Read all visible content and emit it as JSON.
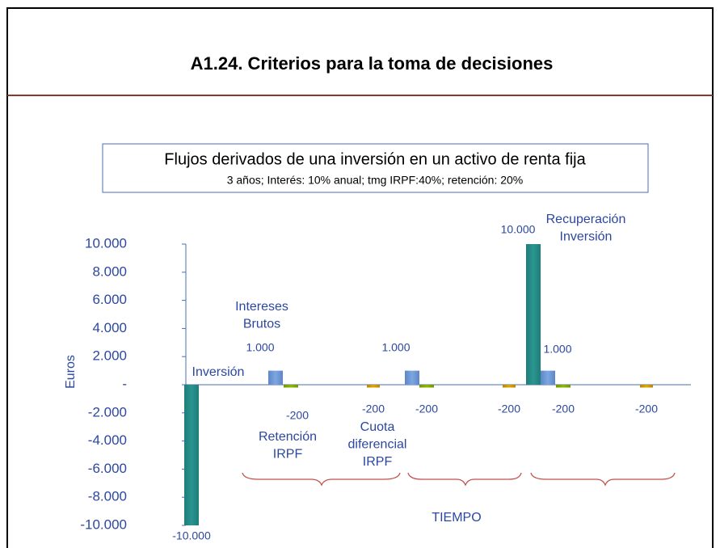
{
  "title": "A1.24. Criterios para la toma de decisiones",
  "chart_data": {
    "type": "bar",
    "title": "Flujos derivados de una inversión en un activo de renta fija",
    "subtitle": "3 años; Interés: 10% anual; tmg IRPF:40%; retención: 20%",
    "y_label": "Euros",
    "x_label": "TIEMPO",
    "categories": [
      null,
      null,
      null,
      null,
      null,
      null,
      null
    ],
    "ylim": [
      -10000,
      10000
    ],
    "yticks": [
      {
        "value": 10000,
        "label": "10.000"
      },
      {
        "value": 8000,
        "label": "8.000"
      },
      {
        "value": 6000,
        "label": "6.000"
      },
      {
        "value": 4000,
        "label": "4.000"
      },
      {
        "value": 2000,
        "label": "2.000"
      },
      {
        "value": 0,
        "label": "-"
      },
      {
        "value": -2000,
        "label": "-2.000"
      },
      {
        "value": -4000,
        "label": "-4.000"
      },
      {
        "value": -6000,
        "label": "-6.000"
      },
      {
        "value": -8000,
        "label": "-8.000"
      },
      {
        "value": -10000,
        "label": "-10.000"
      }
    ],
    "series": [
      {
        "color": "#2a9590",
        "values": [
          -10000,
          null,
          null,
          null,
          null,
          10000,
          null
        ],
        "value_labels": [
          "-10.000",
          null,
          null,
          null,
          null,
          "10.000",
          null
        ]
      },
      {
        "color": "#7ea6e0",
        "values": [
          null,
          1000,
          null,
          1000,
          null,
          1000,
          null
        ],
        "value_labels": [
          null,
          "1.000",
          null,
          "1.000",
          null,
          "1.000",
          null
        ]
      },
      {
        "color": "#8fb800",
        "values": [
          null,
          -200,
          null,
          -200,
          null,
          -200,
          null
        ]
      },
      {
        "color": "#e0a800",
        "values": [
          null,
          null,
          -200,
          null,
          -200,
          null,
          -200
        ]
      }
    ],
    "annotations": [
      [
        "Inversión"
      ],
      [
        "Intereses",
        "Brutos"
      ],
      [
        "Retención",
        "IRPF"
      ],
      [
        "Cuota",
        "diferencial",
        "IRPF"
      ],
      [
        "Recuperación",
        "Inversión"
      ]
    ]
  }
}
